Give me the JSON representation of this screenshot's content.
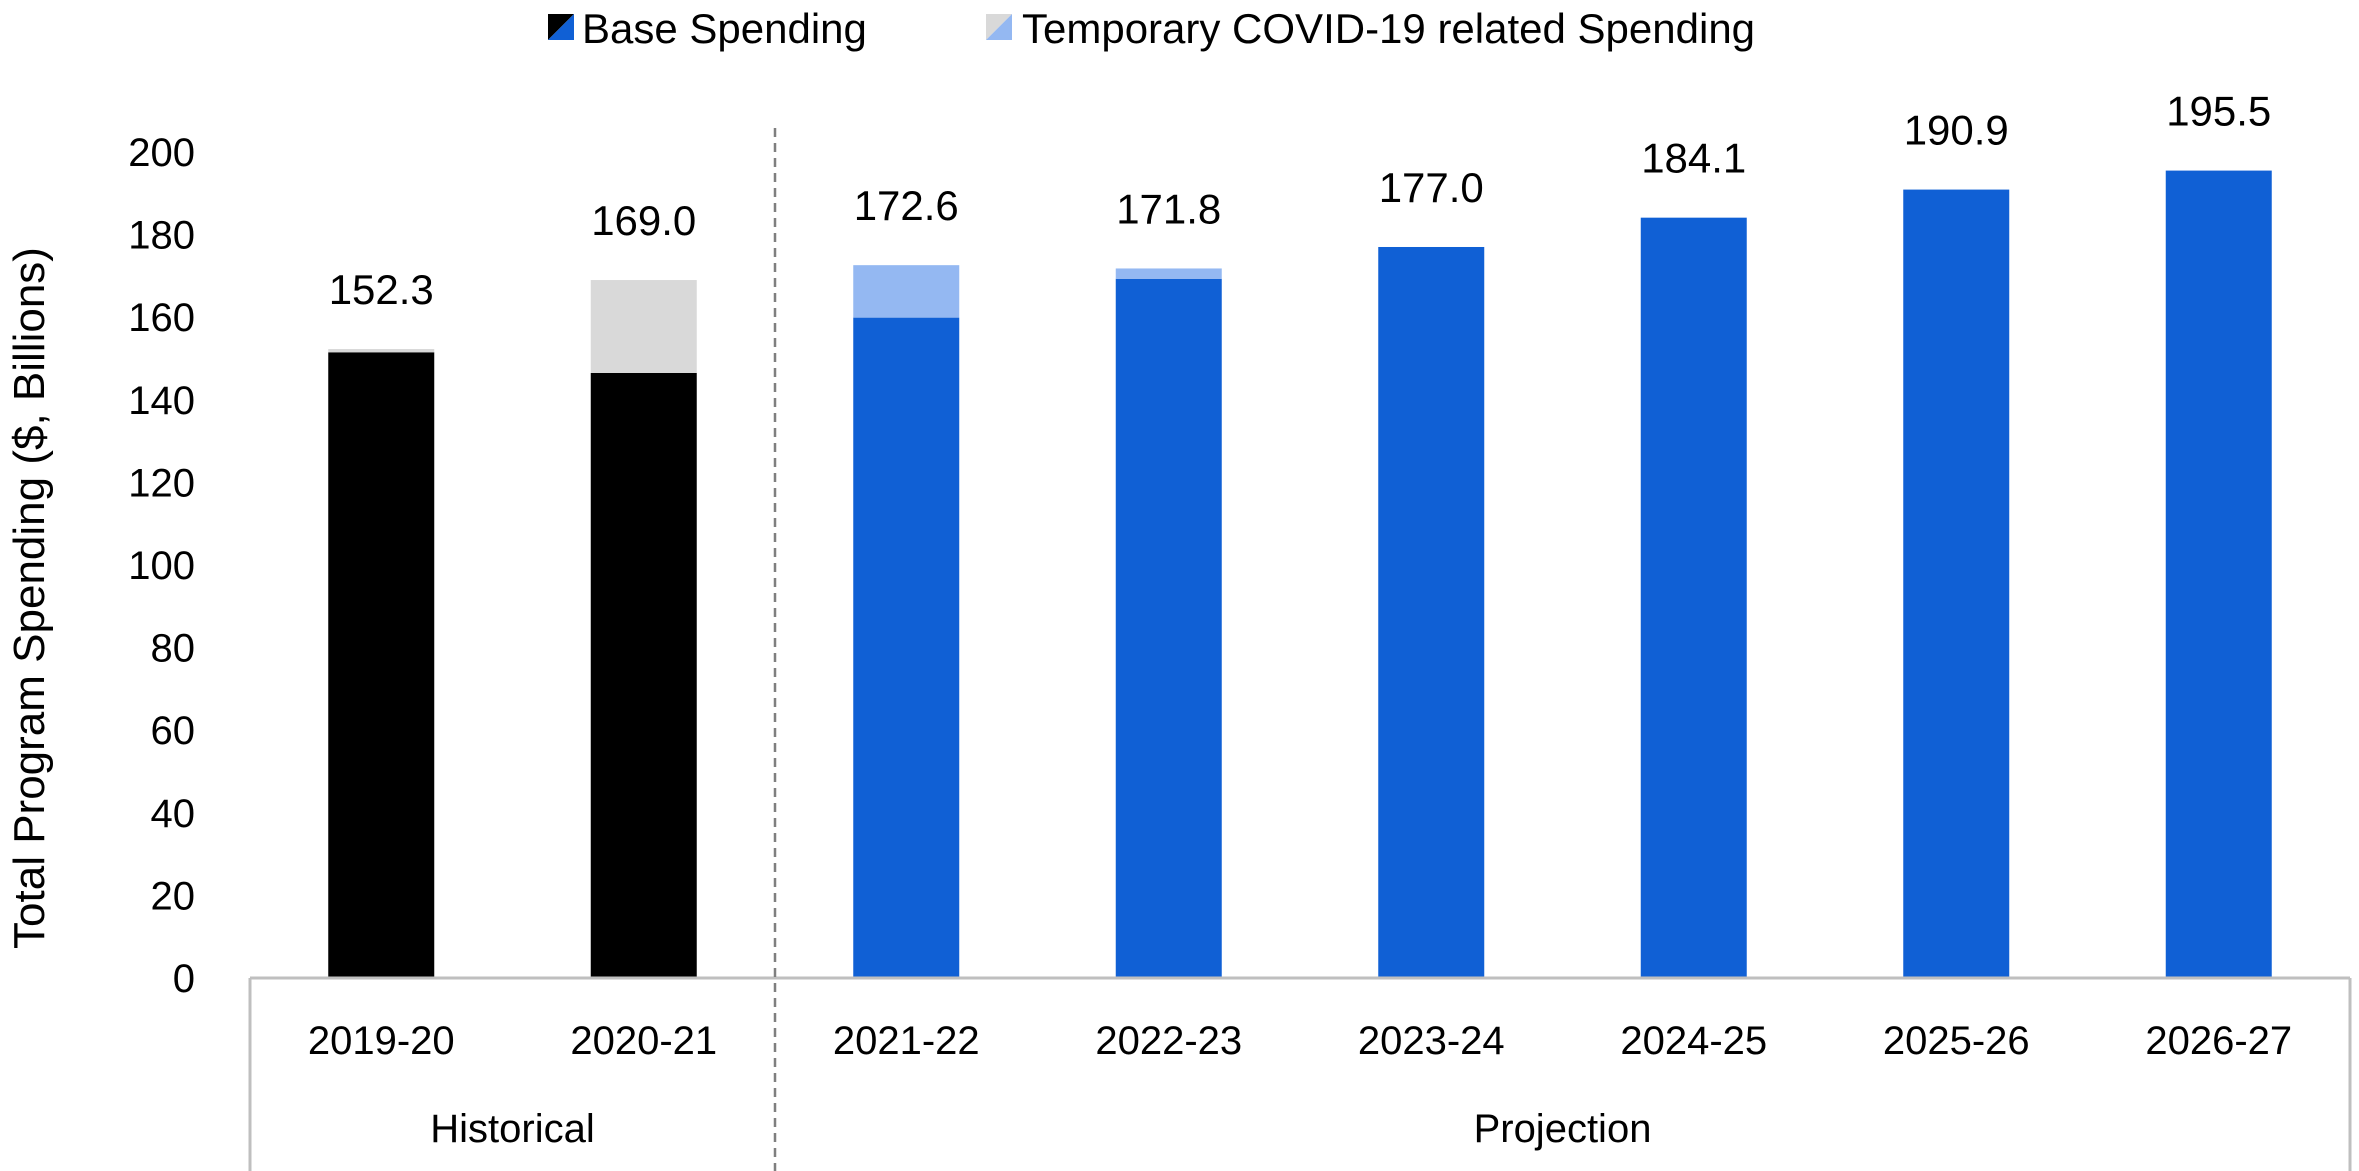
{
  "chart_data": {
    "type": "bar",
    "stacked": true,
    "title": "",
    "ylabel": "Total Program Spending ($, Billions)",
    "xlabel": "",
    "ylim": [
      0,
      200
    ],
    "yticks": [
      0,
      20,
      40,
      60,
      80,
      100,
      120,
      140,
      160,
      180,
      200
    ],
    "grid": false,
    "legend_position": "top",
    "categories": [
      "2019-20",
      "2020-21",
      "2021-22",
      "2022-23",
      "2023-24",
      "2024-25",
      "2025-26",
      "2026-27"
    ],
    "groups": [
      {
        "label": "Historical",
        "categories": [
          "2019-20",
          "2020-21"
        ]
      },
      {
        "label": "Projection",
        "categories": [
          "2021-22",
          "2022-23",
          "2023-24",
          "2024-25",
          "2025-26",
          "2026-27"
        ]
      }
    ],
    "series": [
      {
        "name": "Base Spending",
        "values": [
          151.5,
          146.5,
          159.9,
          169.3,
          177.0,
          184.1,
          190.9,
          195.5
        ],
        "colors": {
          "historical": "#000000",
          "projection": "#1060D5"
        }
      },
      {
        "name": "Temporary COVID-19 related Spending",
        "values": [
          0.8,
          22.5,
          12.7,
          2.5,
          0,
          0,
          0,
          0
        ],
        "colors": {
          "historical": "#D9D9D9",
          "projection": "#94B8F2"
        }
      }
    ],
    "totals": [
      "152.3",
      "169.0",
      "172.6",
      "171.8",
      "177.0",
      "184.1",
      "190.9",
      "195.5"
    ]
  }
}
